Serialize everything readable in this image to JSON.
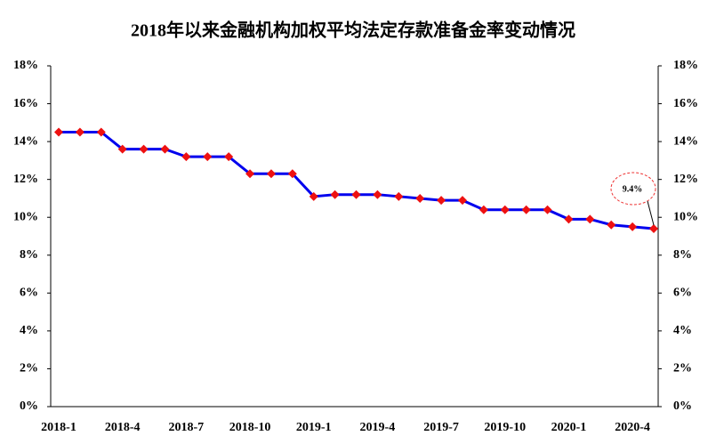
{
  "chart_data": {
    "type": "line",
    "title": "2018年以来金融机构加权平均法定存款准备金率变动情况",
    "categories": [
      "2018-1",
      null,
      null,
      "2018-4",
      null,
      null,
      "2018-7",
      null,
      null,
      "2018-10",
      null,
      null,
      "2019-1",
      null,
      null,
      "2019-4",
      null,
      null,
      "2019-7",
      null,
      null,
      "2019-10",
      null,
      null,
      "2020-1",
      null,
      null,
      "2020-4",
      null
    ],
    "series": [
      {
        "color": "#0000ee",
        "marker_color": "#ee1111",
        "values": [
          14.5,
          14.5,
          14.5,
          13.6,
          13.6,
          13.6,
          13.2,
          13.2,
          13.2,
          12.3,
          12.3,
          12.3,
          11.1,
          11.2,
          11.2,
          11.2,
          11.1,
          11.0,
          10.9,
          10.9,
          10.4,
          10.4,
          10.4,
          10.4,
          9.9,
          9.9,
          9.6,
          9.5,
          9.4
        ]
      }
    ],
    "ylim": [
      0,
      18
    ],
    "yticks": [
      {
        "value": 0,
        "label": "0%"
      },
      {
        "value": 2,
        "label": "2%"
      },
      {
        "value": 4,
        "label": "4%"
      },
      {
        "value": 6,
        "label": "6%"
      },
      {
        "value": 8,
        "label": "8%"
      },
      {
        "value": 10,
        "label": "10%"
      },
      {
        "value": 12,
        "label": "12%"
      },
      {
        "value": 14,
        "label": "14%"
      },
      {
        "value": 16,
        "label": "16%"
      },
      {
        "value": 18,
        "label": "18%"
      }
    ],
    "y2lim": [
      0,
      18
    ],
    "y2ticks": [
      {
        "value": 0,
        "label": "0%"
      },
      {
        "value": 2,
        "label": "2%"
      },
      {
        "value": 4,
        "label": "4%"
      },
      {
        "value": 6,
        "label": "6%"
      },
      {
        "value": 8,
        "label": "8%"
      },
      {
        "value": 10,
        "label": "10%"
      },
      {
        "value": 12,
        "label": "12%"
      },
      {
        "value": 14,
        "label": "14%"
      },
      {
        "value": 16,
        "label": "16%"
      },
      {
        "value": 18,
        "label": "18%"
      }
    ],
    "annotation": "9.4%"
  }
}
